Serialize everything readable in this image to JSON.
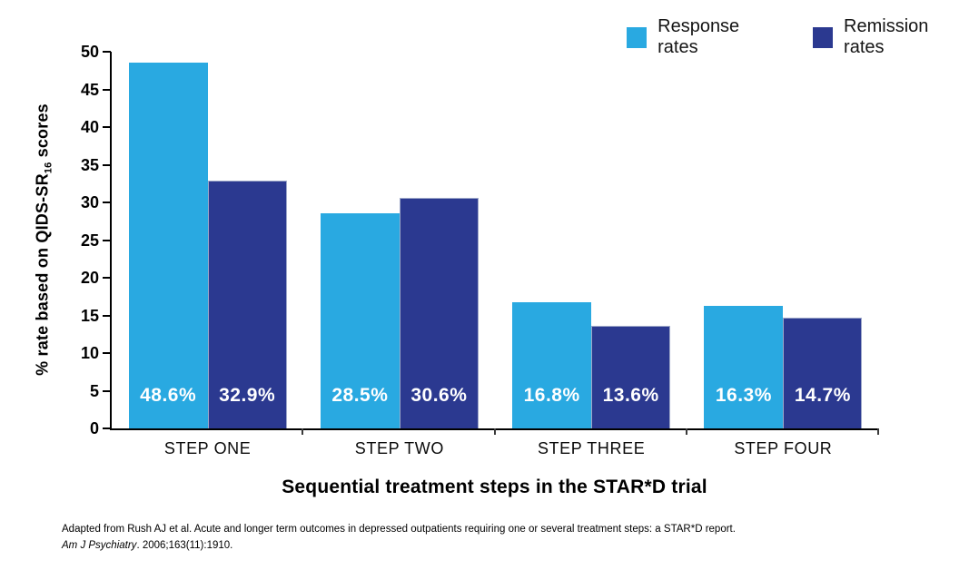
{
  "legend": {
    "items": [
      {
        "label": "Response rates",
        "color": "#29A9E1"
      },
      {
        "label": "Remission rates",
        "color": "#2B3990"
      }
    ]
  },
  "y_axis": {
    "title_prefix": "% rate based on QIDS-SR",
    "title_sub": "16",
    "title_suffix": " scores"
  },
  "x_axis": {
    "title": "Sequential treatment steps in the STAR*D trial"
  },
  "footnote": {
    "line1": "Adapted from Rush AJ et al. Acute and longer term outcomes in depressed outpatients requiring one or several  treatment steps: a STAR*D report.",
    "line2_italic": "Am J Psychiatry",
    "line2_rest": ". 2006;163(11):1910."
  },
  "chart_data": {
    "type": "bar",
    "categories": [
      "STEP ONE",
      "STEP TWO",
      "STEP THREE",
      "STEP FOUR"
    ],
    "series": [
      {
        "name": "Response rates",
        "color": "#29A9E1",
        "values": [
          48.6,
          28.5,
          16.8,
          16.3
        ]
      },
      {
        "name": "Remission rates",
        "color": "#2B3990",
        "values": [
          32.9,
          30.6,
          13.6,
          14.7
        ]
      }
    ],
    "value_labels": [
      [
        "48.6%",
        "32.9%"
      ],
      [
        "28.5%",
        "30.6%"
      ],
      [
        "16.8%",
        "13.6%"
      ],
      [
        "16.3%",
        "14.7%"
      ]
    ],
    "title": "",
    "xlabel": "Sequential treatment steps in the STAR*D trial",
    "ylabel": "% rate based on QIDS-SR16 scores",
    "ylim": [
      0,
      50
    ],
    "yticks": [
      0,
      5,
      10,
      15,
      20,
      25,
      30,
      35,
      40,
      45,
      50
    ],
    "grid": false,
    "legend_position": "top-right"
  }
}
